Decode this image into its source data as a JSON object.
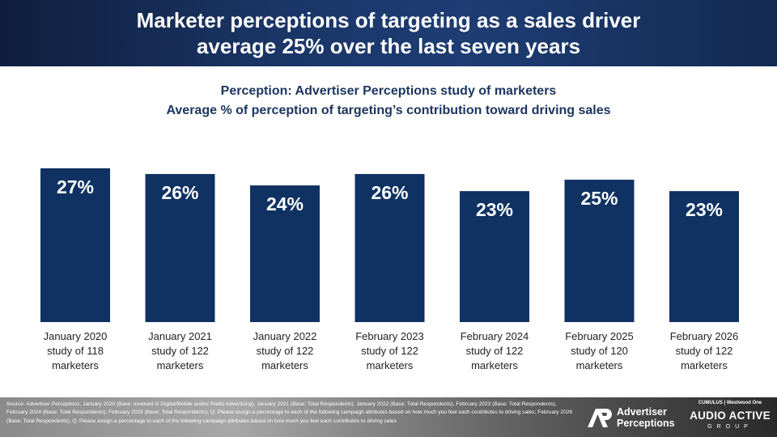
{
  "header": {
    "title_line1": "Marketer perceptions of targeting as a sales driver",
    "title_line2": "average 25% over the last seven years"
  },
  "subtitle": {
    "line1": "Perception: Advertiser Perceptions study of marketers",
    "line2": "Average % of perception of targeting’s contribution toward driving sales"
  },
  "chart_data": {
    "type": "bar",
    "categories": [
      [
        "January 2020",
        "study of 118",
        "marketers"
      ],
      [
        "January 2021",
        "study of 122",
        "marketers"
      ],
      [
        "January 2022",
        "study of 122",
        "marketers"
      ],
      [
        "February 2023",
        "study of 122",
        "marketers"
      ],
      [
        "February 2024",
        "study of 122",
        "marketers"
      ],
      [
        "February 2025",
        "study of 120",
        "marketers"
      ],
      [
        "February 2026",
        "study of 122",
        "marketers"
      ]
    ],
    "values": [
      27,
      26,
      24,
      26,
      23,
      25,
      23
    ],
    "data_labels": [
      "27%",
      "26%",
      "24%",
      "26%",
      "23%",
      "25%",
      "23%"
    ],
    "bar_color": "#0f3263",
    "label_color": "#ffffff",
    "ylim": [
      0,
      27
    ],
    "grid": false
  },
  "footer": {
    "source": "Source: Advertiser Perceptions, January 2020 (Base: Involved in Digital/Mobile and/or Radio Advertising), January 2021 (Base: Total Respondents), January 2022 (Base: Total Respondents), February 2023 (Base: Total Respondents), February 2024 (Base: Total Respondents), February 2025 (Base: Total Respondents), Q: Please assign a percentage to each of the following campaign attributes based on how much you feel each contributes to driving sales; February 2026 (Base: Total Respondents), Q: Please assign a percentage to each of the following campaign attributes based on how much you feel each contributes to driving sales",
    "ap_logo_line1": "Advertiser",
    "ap_logo_line2": "Perceptions",
    "aa_logo_top": "CUMULUS | Westwood One",
    "aa_logo_main": "AUDIO ACTIVE",
    "aa_logo_sub": "GROUP"
  }
}
